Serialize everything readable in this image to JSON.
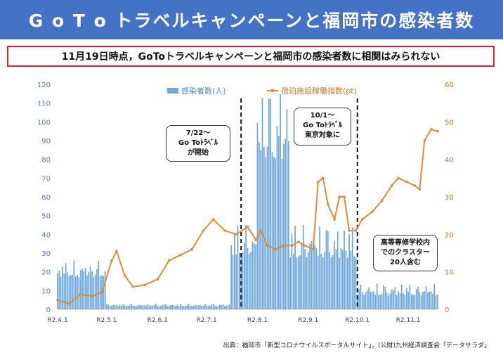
{
  "header": {
    "title": "G o T o トラベルキャンペーンと福岡市の感染者数"
  },
  "subtitle": "11月19日時点，GoToトラベルキャンペーンと福岡市の感染者数に相関はみられない",
  "source": "出典：福岡市「新型コロナウイルスポータルサイト」，(公財)九州経済調査会「データサラダ」",
  "colors": {
    "bars": "#6fa8dc",
    "line": "#e08a3c",
    "left_axis": "#4f81bd",
    "right_axis": "#c5752a",
    "banner": "#4472c4",
    "frame": "#d9262c"
  },
  "callouts": [
    {
      "id": "goto-start",
      "text": "7/22～\nGo Toﾄﾗﾍﾞﾙ\nが開始"
    },
    {
      "id": "tokyo",
      "text": "10/1～\nGo Toﾄﾗﾍﾞﾙ\n東京対象に"
    },
    {
      "id": "cluster",
      "text": "高等専修学校内\nでのクラスター\n20人含む"
    }
  ],
  "chart_data": {
    "type": "bar+line",
    "x_range": [
      "2020-04-01",
      "2020-11-19"
    ],
    "x_ticks": [
      "R2.4.1",
      "R2.5.1",
      "R2.6.1",
      "R2.7.1",
      "R2.8.1",
      "R2.9.1",
      "R2.10.1",
      "R2.11.1"
    ],
    "y_left": {
      "min": 0,
      "max": 120,
      "ticks": [
        0,
        10,
        20,
        30,
        40,
        50,
        60,
        70,
        80,
        90,
        100,
        110,
        120
      ]
    },
    "y_right": {
      "min": 0,
      "max": 60,
      "ticks": [
        0,
        10,
        20,
        30,
        40,
        50,
        60
      ]
    },
    "legend": {
      "bars": "感染者数(人)",
      "line": "宿泊施設稼働指数(pt)"
    },
    "events": [
      "2020-07-22",
      "2020-10-01"
    ],
    "bars": [
      {
        "period": "R2.4.1-R2.4.30",
        "peak": 26,
        "typical": 12
      },
      {
        "period": "R2.5.1-R2.7.15",
        "peak": 3,
        "typical": 1
      },
      {
        "period": "R2.7.16-R2.7.31",
        "peak": 45,
        "typical": 20
      },
      {
        "period": "R2.8.1-R2.8.20",
        "peak": 116,
        "typical": 60
      },
      {
        "period": "R2.8.21-R2.9.30",
        "peak": 45,
        "typical": 18
      },
      {
        "period": "R2.10.1-R2.11.19",
        "peak": 14,
        "typical": 4
      }
    ],
    "line_series": {
      "name": "宿泊施設稼働指数(pt)",
      "points": [
        [
          "2020-04-01",
          2.5
        ],
        [
          "2020-04-08",
          1.5
        ],
        [
          "2020-04-15",
          4
        ],
        [
          "2020-04-22",
          3.5
        ],
        [
          "2020-04-28",
          4.5
        ],
        [
          "2020-05-04",
          13
        ],
        [
          "2020-05-07",
          15.5
        ],
        [
          "2020-05-12",
          9
        ],
        [
          "2020-05-17",
          6
        ],
        [
          "2020-05-24",
          6.5
        ],
        [
          "2020-06-01",
          8
        ],
        [
          "2020-06-08",
          13
        ],
        [
          "2020-06-15",
          14.5
        ],
        [
          "2020-06-22",
          16
        ],
        [
          "2020-06-29",
          21
        ],
        [
          "2020-07-05",
          24
        ],
        [
          "2020-07-12",
          21
        ],
        [
          "2020-07-19",
          20
        ],
        [
          "2020-07-26",
          22
        ],
        [
          "2020-07-31",
          18.5
        ],
        [
          "2020-08-03",
          21
        ],
        [
          "2020-08-07",
          17
        ],
        [
          "2020-08-12",
          16
        ],
        [
          "2020-08-17",
          17
        ],
        [
          "2020-08-22",
          17
        ],
        [
          "2020-08-26",
          18
        ],
        [
          "2020-08-30",
          17
        ],
        [
          "2020-09-04",
          16
        ],
        [
          "2020-09-07",
          34
        ],
        [
          "2020-09-10",
          35
        ],
        [
          "2020-09-13",
          28
        ],
        [
          "2020-09-17",
          24
        ],
        [
          "2020-09-20",
          30
        ],
        [
          "2020-09-23",
          30
        ],
        [
          "2020-09-26",
          21
        ],
        [
          "2020-09-30",
          21
        ],
        [
          "2020-10-04",
          24
        ],
        [
          "2020-10-10",
          26
        ],
        [
          "2020-10-16",
          29
        ],
        [
          "2020-10-22",
          33
        ],
        [
          "2020-10-26",
          35
        ],
        [
          "2020-10-31",
          34
        ],
        [
          "2020-11-05",
          33
        ],
        [
          "2020-11-08",
          32
        ],
        [
          "2020-11-11",
          45
        ],
        [
          "2020-11-15",
          48
        ],
        [
          "2020-11-19",
          47.5
        ]
      ]
    }
  }
}
